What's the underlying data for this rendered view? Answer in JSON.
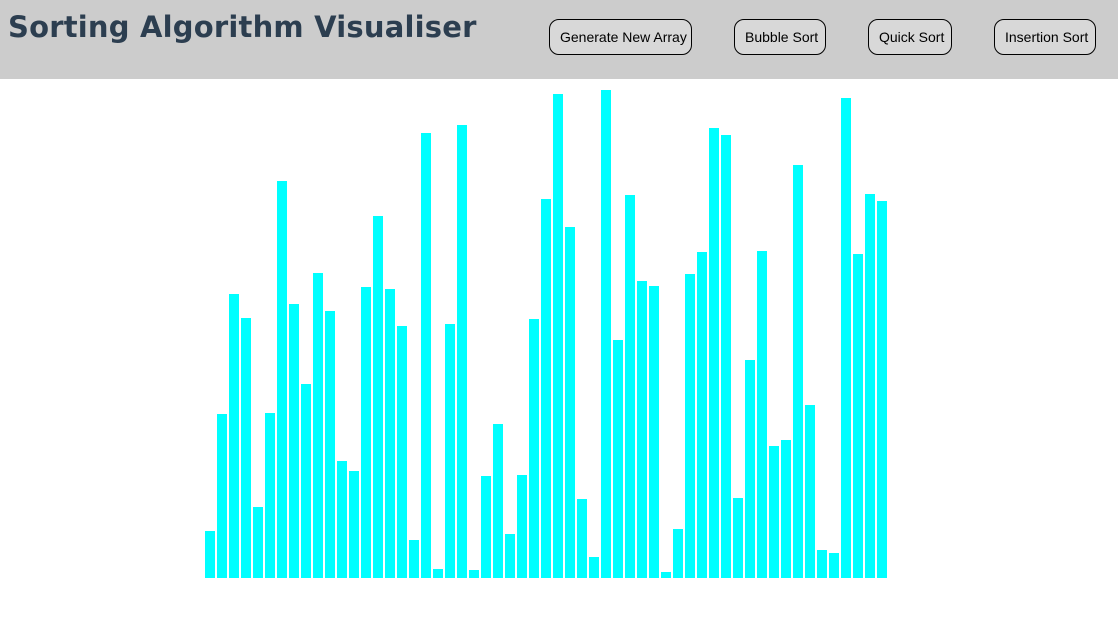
{
  "header": {
    "title": "Sorting Algorithm Visualiser"
  },
  "toolbar": {
    "generate_label": "Generate New Array",
    "bubble_label": "Bubble Sort",
    "quick_label": "Quick Sort",
    "insertion_label": "Insertion Sort"
  },
  "colors": {
    "header_bg": "#cccccc",
    "title": "#2c3e50",
    "bar": "#00ffff"
  },
  "array": {
    "max_value": 491,
    "values": [
      47,
      164,
      284,
      260,
      71,
      165,
      397,
      274,
      194,
      305,
      267,
      117,
      107,
      291,
      362,
      289,
      252,
      38,
      445,
      9,
      254,
      453,
      8,
      102,
      154,
      44,
      103,
      259,
      379,
      484,
      351,
      79,
      21,
      488,
      238,
      383,
      297,
      292,
      6,
      49,
      304,
      326,
      450,
      443,
      80,
      218,
      327,
      132,
      138,
      413,
      173,
      28,
      25,
      480,
      324,
      384,
      377
    ]
  }
}
